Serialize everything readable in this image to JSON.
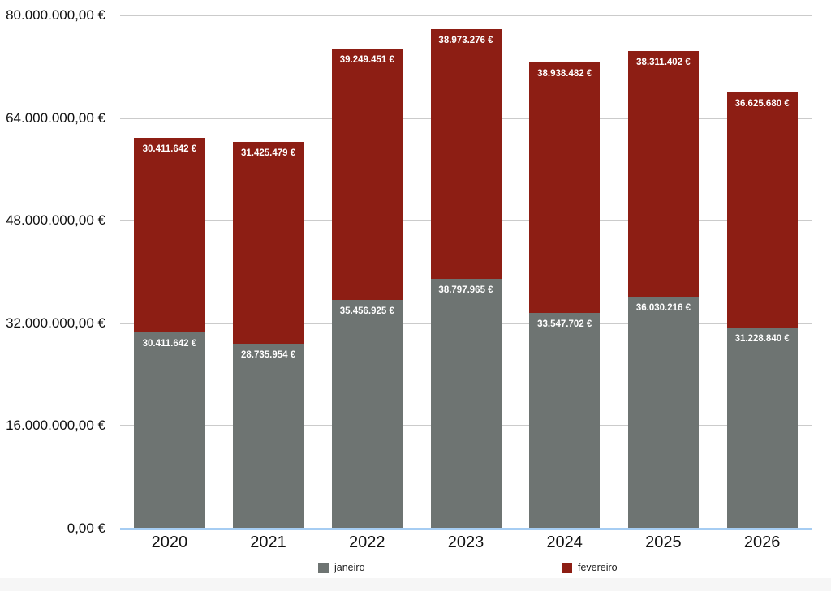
{
  "chart_data": {
    "type": "bar",
    "stacked": true,
    "title": "",
    "categories": [
      "2020",
      "2021",
      "2022",
      "2023",
      "2024",
      "2025",
      "2026"
    ],
    "series": [
      {
        "name": "janeiro",
        "color": "#6e7472",
        "values": [
          30411642,
          28735954,
          35456925,
          38797965,
          33547702,
          36030216,
          31228840
        ],
        "labels": [
          "30.411.642 €",
          "28.735.954 €",
          "35.456.925 €",
          "38.797.965 €",
          "33.547.702 €",
          "36.030.216 €",
          "31.228.840 €"
        ]
      },
      {
        "name": "fevereiro",
        "color": "#8d1e14",
        "values": [
          30411642,
          31425479,
          39249451,
          38973276,
          38938482,
          38311402,
          36625680
        ],
        "labels": [
          "30.411.642 €",
          "31.425.479 €",
          "39.249.451 €",
          "38.973.276 €",
          "38.938.482 €",
          "38.311.402 €",
          "36.625.680 €"
        ]
      }
    ],
    "y_axis": {
      "min": 0,
      "max": 80000000,
      "ticks": [
        {
          "value": 80000000,
          "label": "80.000.000,00 €"
        },
        {
          "value": 64000000,
          "label": "64.000.000,00 €"
        },
        {
          "value": 48000000,
          "label": "48.000.000,00 €"
        },
        {
          "value": 32000000,
          "label": "32.000.000,00 €"
        },
        {
          "value": 16000000,
          "label": "16.000.000,00 €"
        },
        {
          "value": 0,
          "label": "0,00 €"
        }
      ]
    },
    "legend": {
      "position": "bottom",
      "items": [
        {
          "label": "janeiro",
          "color": "#6e7472"
        },
        {
          "label": "fevereiro",
          "color": "#8d1e14"
        }
      ]
    },
    "grid": true,
    "colors": {
      "gridline": "#cbcbcb",
      "baseline": "#a6cdf3",
      "bar_label_text": "#ffffff",
      "axis_text": "#111111"
    }
  }
}
